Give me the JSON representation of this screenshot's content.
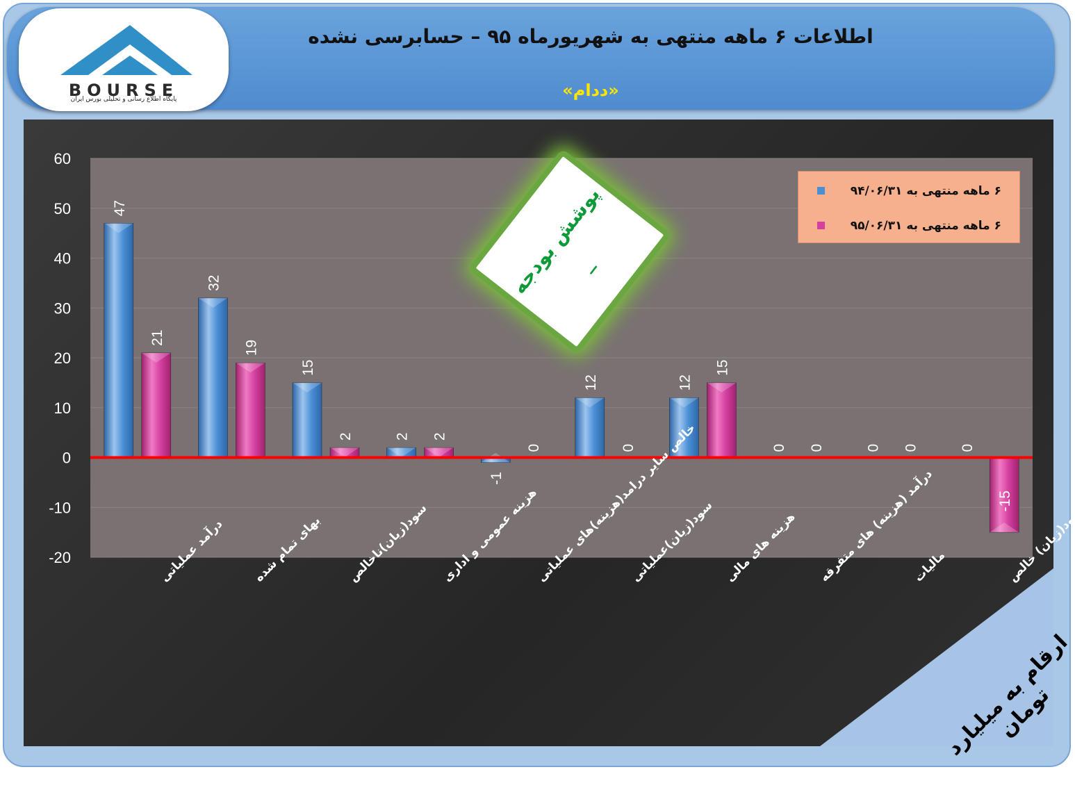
{
  "header": {
    "title": "اطلاعات ۶  ماهه منتهی به شهریورماه ۹۵ – حسابرسی نشده",
    "company": "«ددام»"
  },
  "logo": {
    "word": "BOURSE",
    "subtitle": "پایگاه اطلاع رسانی و تحلیلی بورس ایران"
  },
  "sticker": {
    "text": "پوشش بودجه",
    "value": "_"
  },
  "unit_note": "ارقام به میلیارد تومان",
  "colors": {
    "series1": "#4a8fd6",
    "series2": "#d43fa0",
    "zero_line": "#ff0000",
    "plot_bg": "#7a7272",
    "legend_bg": "#f6b08e"
  },
  "chart_data": {
    "type": "bar",
    "categories": [
      "درآمد عملیاتی",
      "بهای تمام شده",
      "سود(زیان)ناخالص",
      "هزینه عمومی و اداری",
      "خالص سایر درامد(هزینه)های عملیاتی",
      "سود(زیان)عملیاتی",
      "هزینه های مالی",
      "درآمد (هزینه) های متفرقه",
      "مالیات",
      "سود(زیان) خالص"
    ],
    "series": [
      {
        "name": "۶ ماهه منتهی به ۹۴/۰۶/۳۱",
        "values": [
          47,
          32,
          15,
          2,
          -1,
          12,
          12,
          0,
          0,
          0
        ]
      },
      {
        "name": "۶ ماهه منتهی به ۹۵/۰۶/۳۱",
        "values": [
          21,
          19,
          2,
          2,
          0,
          0,
          15,
          0,
          0,
          -15
        ]
      }
    ],
    "ylim": [
      -20,
      60
    ],
    "yticks": [
      60,
      50,
      40,
      30,
      20,
      10,
      0,
      -10,
      -20
    ],
    "grid": true,
    "legend_position": "top-right"
  }
}
